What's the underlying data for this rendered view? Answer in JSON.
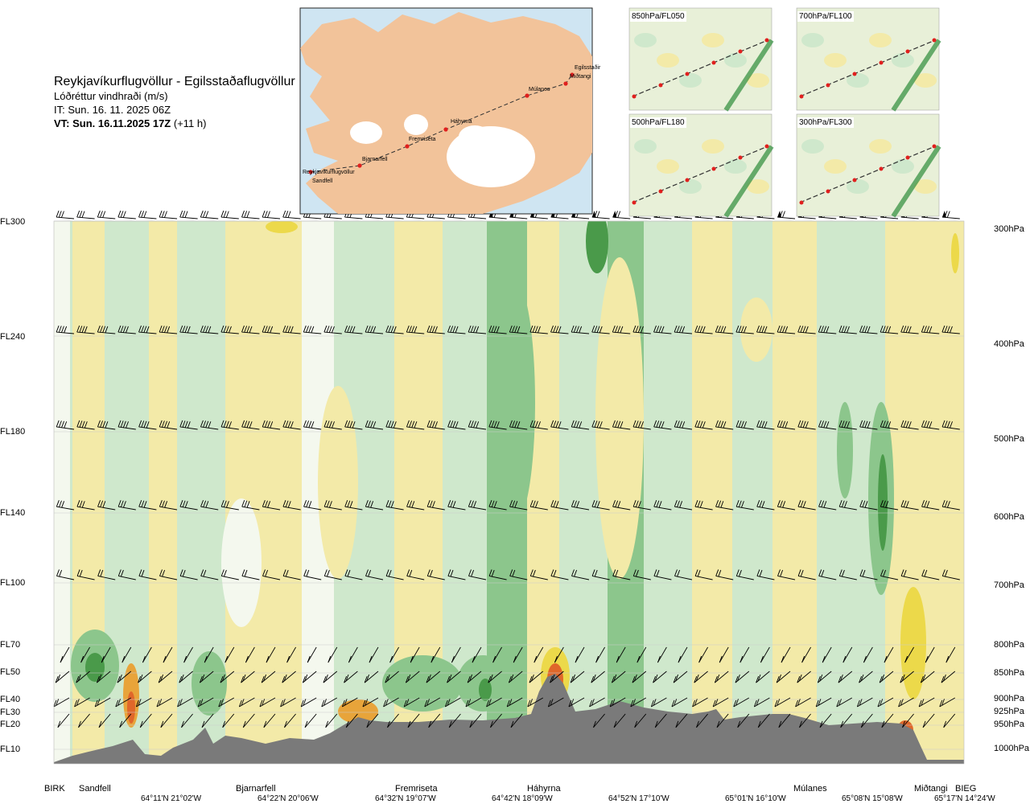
{
  "header": {
    "route": "Reykjavíkurflugvöllur - Egilsstaðaflugvöllur",
    "parameter": "Lóðréttur vindhraði (m/s)",
    "initial_time": "IT: Sun. 16. 11. 2025 06Z",
    "valid_time": "VT: Sun. 16.11.2025 17Z",
    "lead_time": "(+11 h)"
  },
  "map_inset": {
    "places": [
      "Reykjavíkurflugvöllur",
      "Sandfell",
      "Bjarnarfell",
      "Fremriseta",
      "Háhyrna",
      "Múlanes",
      "Egilsstaðir",
      "Miðtangi"
    ],
    "colors": {
      "sea": "#cfe5f2",
      "land": "#f3c9a3",
      "glacier": "#ffffff",
      "route": "#333333",
      "point": "#e0201e"
    }
  },
  "level_panels": [
    {
      "caption": "850hPa/FL050"
    },
    {
      "caption": "700hPa/FL100"
    },
    {
      "caption": "500hPa/FL180"
    },
    {
      "caption": "300hPa/FL300"
    }
  ],
  "flight_levels": [
    "FL300",
    "FL240",
    "FL180",
    "FL140",
    "FL100",
    "FL70",
    "FL50",
    "FL40",
    "FL30",
    "FL20",
    "FL10"
  ],
  "pressure_levels": [
    "300hPa",
    "400hPa",
    "500hPa",
    "600hPa",
    "700hPa",
    "800hPa",
    "850hPa",
    "900hPa",
    "925hPa",
    "950hPa",
    "1000hPa"
  ],
  "locations": [
    "BIRK",
    "Sandfell",
    "Bjarnarfell",
    "Fremriseta",
    "Háhyrna",
    "Múlanes",
    "Miðtangi",
    "BIEG"
  ],
  "coordinates": [
    "64°11'N 21°02'W",
    "64°22'N 20°06'W",
    "64°32'N 19°07'W",
    "64°42'N 18°09'W",
    "64°52'N 17°10'W",
    "65°01'N 16°10'W",
    "65°08'N 15°08'W",
    "65°17'N 14°24'W"
  ],
  "chart_data": {
    "type": "heatmap",
    "title": "Lóðréttur vindhraði (m/s)",
    "x_positions": [
      "BIRK",
      "Sandfell",
      "Bjarnarfell",
      "Fremriseta",
      "Háhyrna",
      "Múlanes",
      "Miðtangi",
      "BIEG"
    ],
    "y_levels_hpa": [
      300,
      400,
      500,
      600,
      700,
      800,
      850,
      900,
      925,
      950,
      1000
    ],
    "color_scale": {
      "strong_downward": "#4a9a4a",
      "moderate_downward": "#8cc68c",
      "weak_downward": "#cfe8cc",
      "near_zero": "#f4f8ee",
      "weak_upward": "#f3eaa8",
      "moderate_upward": "#ecd94a",
      "strong_upward": "#e8a43a",
      "very_strong_upward": "#e0672a",
      "terrain": "#7a7a7a"
    },
    "wind_barb_levels_hpa": [
      300,
      400,
      500,
      600,
      700,
      800,
      850,
      900,
      925,
      950
    ],
    "grid": true
  }
}
